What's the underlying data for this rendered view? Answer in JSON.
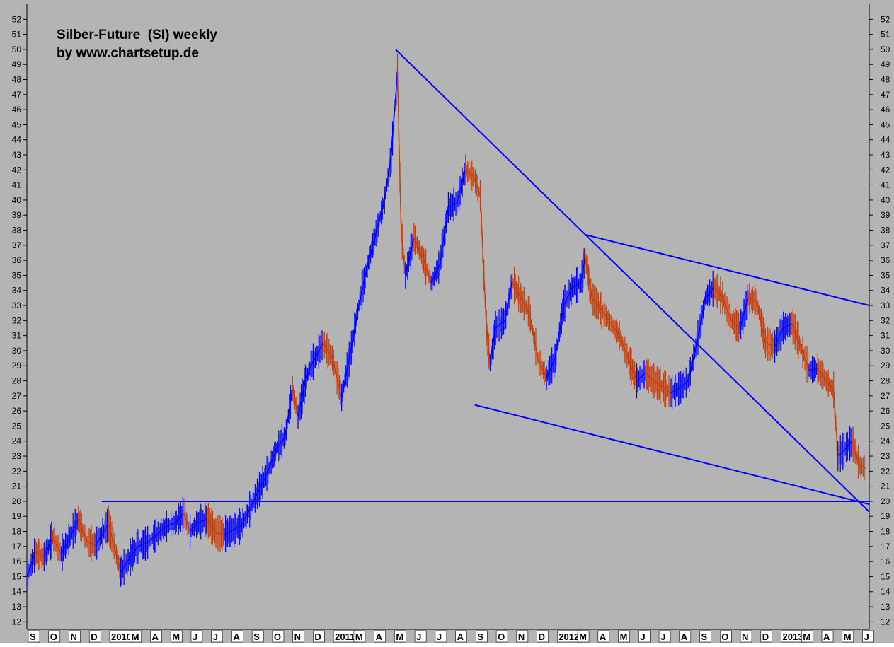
{
  "chart_data": {
    "type": "line",
    "title": "Silber-Future  (SI) weekly",
    "subtitle": "by www.chartsetup.de",
    "ylim": [
      11.5,
      53
    ],
    "y_ticks": [
      12,
      13,
      14,
      15,
      16,
      17,
      18,
      19,
      20,
      21,
      22,
      23,
      24,
      25,
      26,
      27,
      28,
      29,
      30,
      31,
      32,
      33,
      34,
      35,
      36,
      37,
      38,
      39,
      40,
      41,
      42,
      43,
      44,
      45,
      46,
      47,
      48,
      49,
      50,
      51,
      52
    ],
    "x_tick_labels": [
      "S",
      "O",
      "N",
      "D",
      "2010",
      "M",
      "A",
      "M",
      "J",
      "J",
      "A",
      "S",
      "O",
      "N",
      "D",
      "2011",
      "M",
      "A",
      "M",
      "J",
      "J",
      "A",
      "S",
      "O",
      "N",
      "D",
      "2012",
      "M",
      "A",
      "M",
      "J",
      "J",
      "A",
      "S",
      "O",
      "N",
      "D",
      "2013",
      "M",
      "A",
      "M",
      "J"
    ],
    "x_start": "2009-09-01",
    "x_end": "2013-06-05",
    "grid": false,
    "background": "#b4b4b4",
    "colors": {
      "up": "#0000ff",
      "down": "#c83c0a",
      "trendline": "#0000ff"
    },
    "series": [
      {
        "values": [
          [
            "2009-09-01",
            15.0
          ],
          [
            "2009-09-15",
            16.6
          ],
          [
            "2009-09-29",
            16.3
          ],
          [
            "2009-10-13",
            17.6
          ],
          [
            "2009-10-27",
            16.5
          ],
          [
            "2009-11-10",
            17.6
          ],
          [
            "2009-11-24",
            18.8
          ],
          [
            "2009-12-08",
            17.3
          ],
          [
            "2009-12-22",
            17.1
          ],
          [
            "2010-01-12",
            18.5
          ],
          [
            "2010-02-01",
            15.3
          ],
          [
            "2010-02-15",
            16.2
          ],
          [
            "2010-03-01",
            17.0
          ],
          [
            "2010-03-15",
            17.2
          ],
          [
            "2010-04-01",
            17.8
          ],
          [
            "2010-04-15",
            18.3
          ],
          [
            "2010-05-01",
            18.6
          ],
          [
            "2010-05-15",
            19.2
          ],
          [
            "2010-05-25",
            18.0
          ],
          [
            "2010-06-08",
            18.6
          ],
          [
            "2010-06-22",
            18.8
          ],
          [
            "2010-07-06",
            17.9
          ],
          [
            "2010-07-20",
            17.8
          ],
          [
            "2010-08-03",
            18.1
          ],
          [
            "2010-08-17",
            18.4
          ],
          [
            "2010-09-01",
            19.6
          ],
          [
            "2010-09-15",
            20.8
          ],
          [
            "2010-09-29",
            22.0
          ],
          [
            "2010-10-13",
            23.5
          ],
          [
            "2010-10-27",
            24.3
          ],
          [
            "2010-11-08",
            27.5
          ],
          [
            "2010-11-17",
            25.6
          ],
          [
            "2010-11-29",
            28.0
          ],
          [
            "2010-12-08",
            29.0
          ],
          [
            "2010-12-28",
            30.5
          ],
          [
            "2011-01-12",
            29.5
          ],
          [
            "2011-01-27",
            26.9
          ],
          [
            "2011-02-10",
            29.8
          ],
          [
            "2011-02-24",
            33.0
          ],
          [
            "2011-03-10",
            35.6
          ],
          [
            "2011-03-24",
            37.8
          ],
          [
            "2011-04-07",
            40.0
          ],
          [
            "2011-04-18",
            43.0
          ],
          [
            "2011-04-28",
            48.5
          ],
          [
            "2011-05-04",
            38.0
          ],
          [
            "2011-05-11",
            35.0
          ],
          [
            "2011-05-25",
            37.5
          ],
          [
            "2011-06-08",
            36.2
          ],
          [
            "2011-06-22",
            34.5
          ],
          [
            "2011-07-06",
            35.7
          ],
          [
            "2011-07-20",
            39.5
          ],
          [
            "2011-08-03",
            39.8
          ],
          [
            "2011-08-17",
            42.0
          ],
          [
            "2011-08-31",
            41.5
          ],
          [
            "2011-09-10",
            40.3
          ],
          [
            "2011-09-20",
            31.5
          ],
          [
            "2011-09-26",
            29.2
          ],
          [
            "2011-10-05",
            31.5
          ],
          [
            "2011-10-20",
            32.0
          ],
          [
            "2011-11-01",
            34.6
          ],
          [
            "2011-11-15",
            33.5
          ],
          [
            "2011-11-29",
            32.5
          ],
          [
            "2011-12-13",
            29.5
          ],
          [
            "2011-12-27",
            28.2
          ],
          [
            "2012-01-10",
            29.5
          ],
          [
            "2012-01-24",
            33.0
          ],
          [
            "2012-02-07",
            34.2
          ],
          [
            "2012-02-21",
            34.5
          ],
          [
            "2012-02-28",
            36.2
          ],
          [
            "2012-03-10",
            33.5
          ],
          [
            "2012-03-24",
            32.8
          ],
          [
            "2012-04-10",
            31.8
          ],
          [
            "2012-04-24",
            31.0
          ],
          [
            "2012-05-08",
            29.5
          ],
          [
            "2012-05-22",
            28.0
          ],
          [
            "2012-06-05",
            28.5
          ],
          [
            "2012-06-19",
            28.0
          ],
          [
            "2012-07-03",
            27.6
          ],
          [
            "2012-07-17",
            27.2
          ],
          [
            "2012-07-31",
            27.5
          ],
          [
            "2012-08-14",
            28.0
          ],
          [
            "2012-08-28",
            30.5
          ],
          [
            "2012-09-11",
            33.5
          ],
          [
            "2012-09-25",
            34.2
          ],
          [
            "2012-10-09",
            33.5
          ],
          [
            "2012-10-23",
            32.0
          ],
          [
            "2012-11-06",
            31.5
          ],
          [
            "2012-11-20",
            33.5
          ],
          [
            "2012-12-04",
            33.2
          ],
          [
            "2012-12-18",
            30.5
          ],
          [
            "2013-01-02",
            30.3
          ],
          [
            "2013-01-16",
            31.5
          ],
          [
            "2013-01-30",
            31.8
          ],
          [
            "2013-02-13",
            30.3
          ],
          [
            "2013-02-27",
            28.7
          ],
          [
            "2013-03-13",
            28.8
          ],
          [
            "2013-03-27",
            28.0
          ],
          [
            "2013-04-08",
            27.4
          ],
          [
            "2013-04-15",
            23.0
          ],
          [
            "2013-04-25",
            23.4
          ],
          [
            "2013-05-08",
            24.0
          ],
          [
            "2013-05-20",
            22.4
          ],
          [
            "2013-05-30",
            22.2
          ]
        ]
      }
    ],
    "trendlines": [
      {
        "from": [
          "2010-01-01",
          20.0
        ],
        "to": [
          "2013-06-05",
          20.0
        ]
      },
      {
        "from": [
          "2011-04-25",
          50.0
        ],
        "to": [
          "2013-06-05",
          19.3
        ]
      },
      {
        "from": [
          "2012-02-28",
          37.7
        ],
        "to": [
          "2013-06-05",
          33.0
        ]
      },
      {
        "from": [
          "2011-09-01",
          26.4
        ],
        "to": [
          "2013-06-05",
          19.8
        ]
      }
    ]
  }
}
